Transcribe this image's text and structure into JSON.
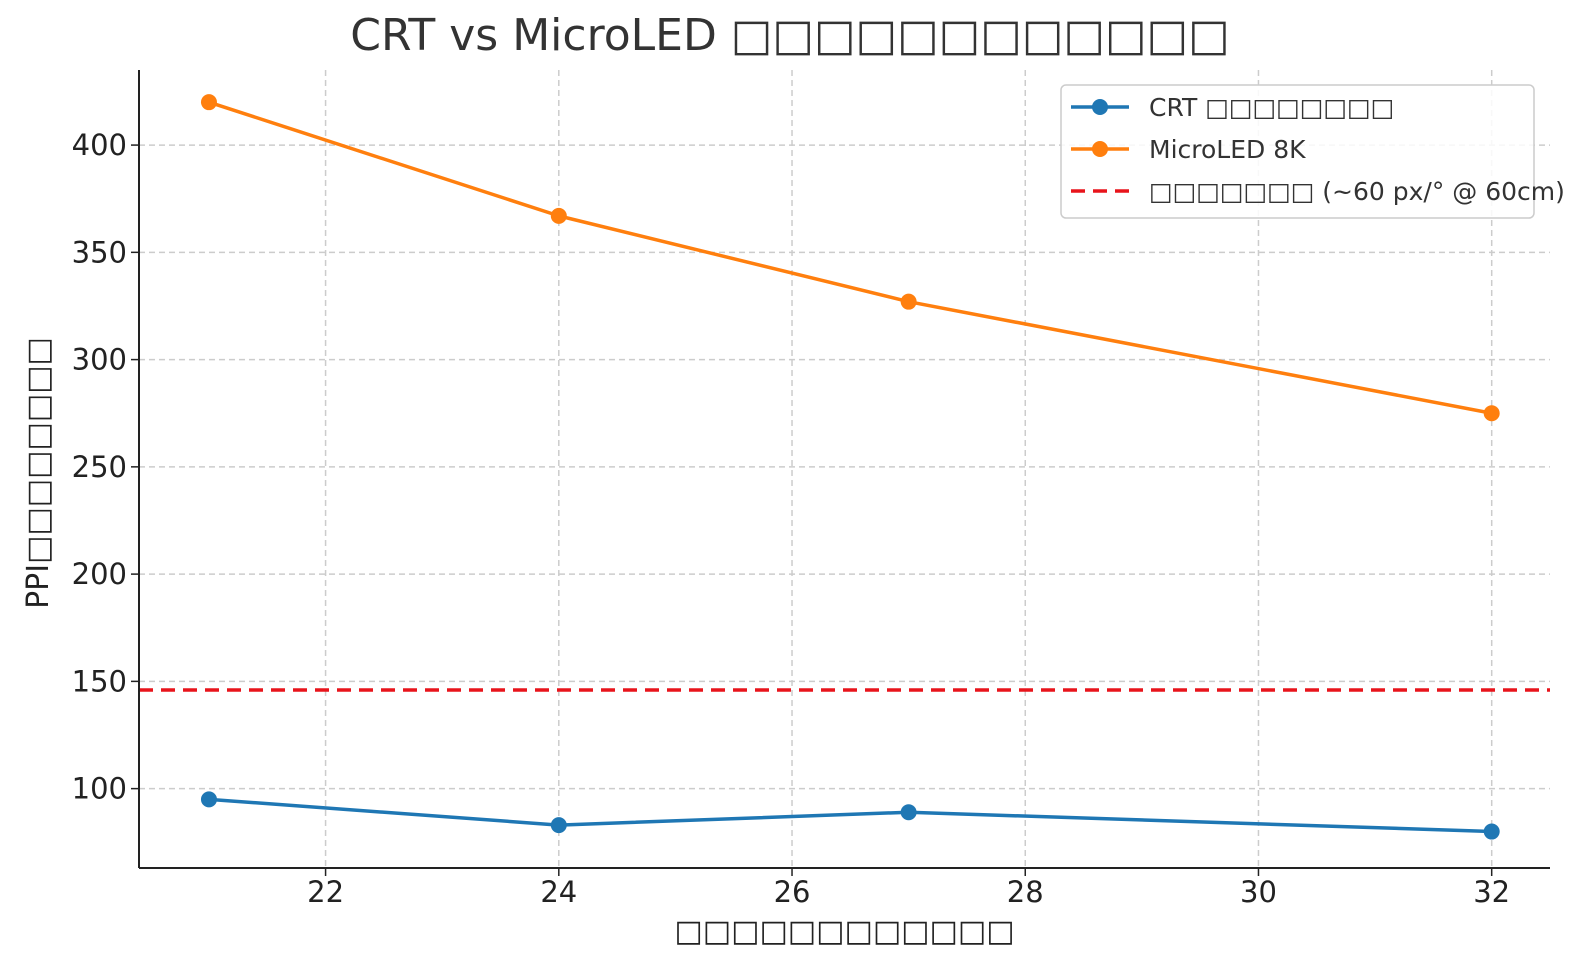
{
  "chart_data": {
    "type": "line",
    "title": "CRT vs MicroLED □□□□□□□□□□□□",
    "xlabel": "□□□□□□□□□□□□",
    "ylabel": "PPI□□□□□□□□",
    "x": [
      21,
      24,
      27,
      32
    ],
    "xlim": [
      20.4,
      32.5
    ],
    "ylim": [
      63,
      435
    ],
    "xticks": [
      22,
      24,
      26,
      28,
      30,
      32
    ],
    "yticks": [
      100,
      150,
      200,
      250,
      300,
      350,
      400
    ],
    "grid": true,
    "legend_position": "top-right",
    "series": [
      {
        "name": "CRT □□□□□□□□",
        "values": [
          95,
          83,
          89,
          80
        ],
        "color": "#1f77b4",
        "marker": "circle"
      },
      {
        "name": "MicroLED 8K",
        "values": [
          420,
          367,
          327,
          275
        ],
        "color": "#ff7f0e",
        "marker": "circle"
      }
    ],
    "reference_line": {
      "name": "□□□□□□□ (~60 px/° @ 60cm)",
      "y": 146,
      "color": "#e8141b",
      "style": "dashed"
    }
  }
}
